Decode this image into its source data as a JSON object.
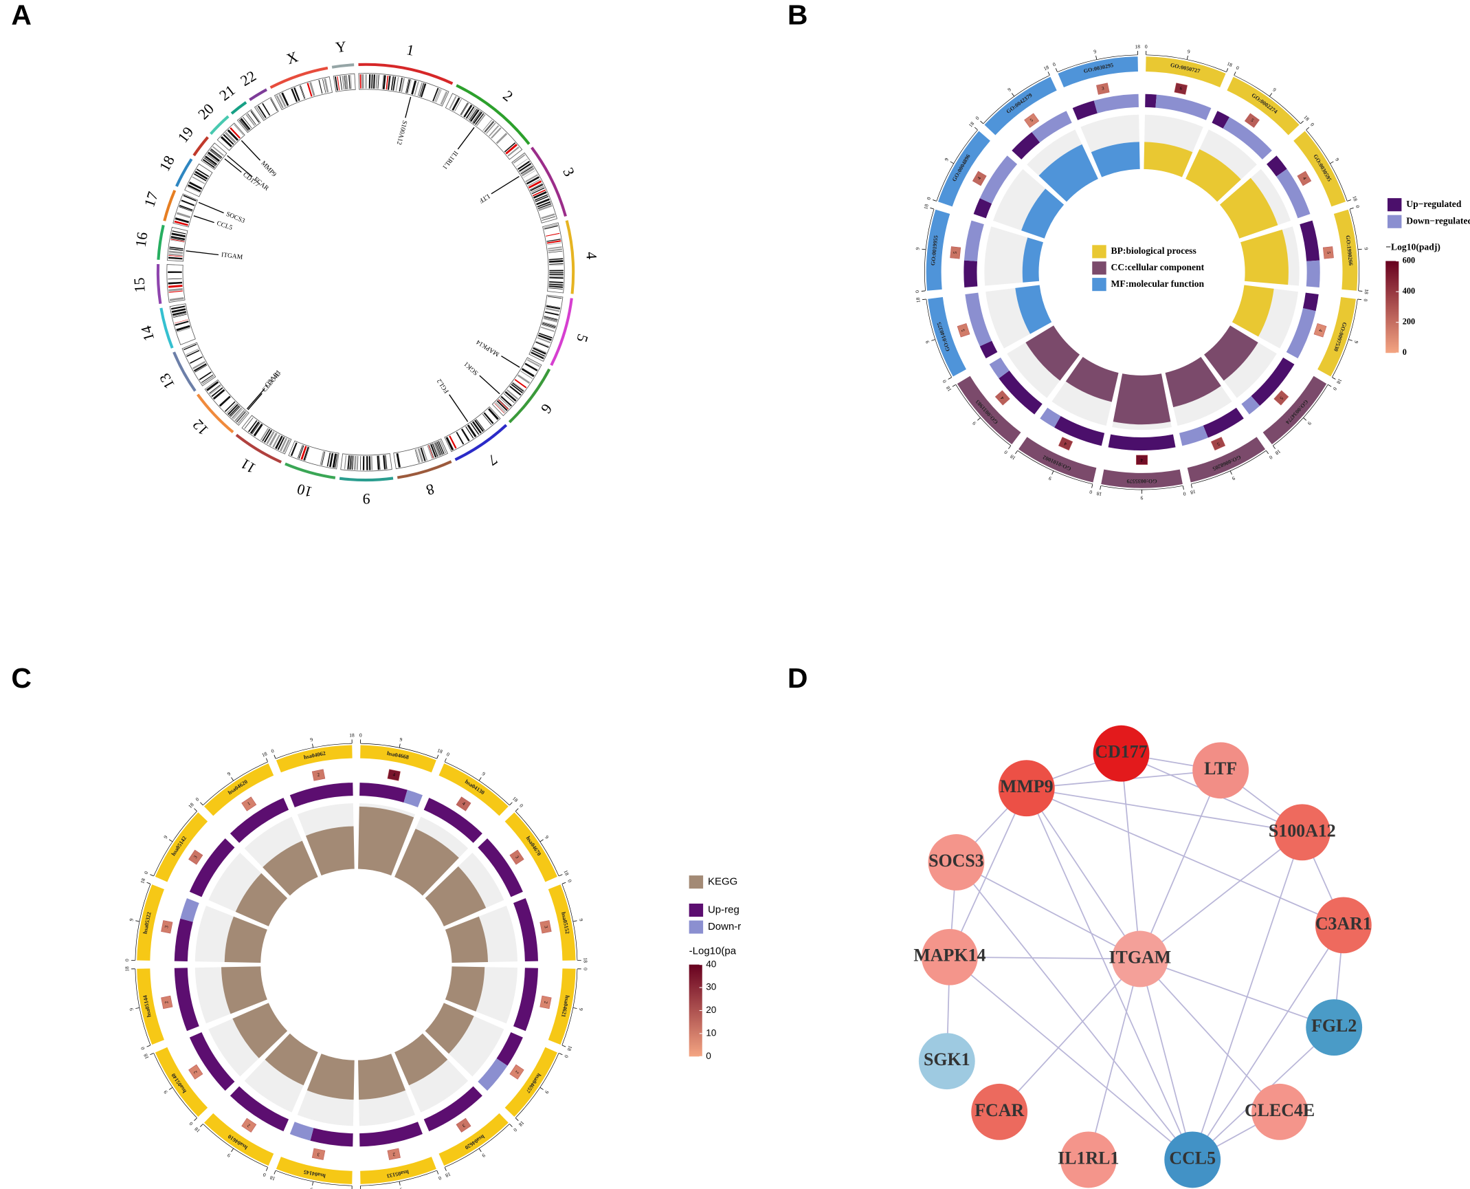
{
  "panel_labels": [
    "A",
    "B",
    "C",
    "D"
  ],
  "chart_data": [
    {
      "type": "ideogram",
      "chromosomes": [
        "1",
        "2",
        "3",
        "4",
        "5",
        "6",
        "7",
        "8",
        "9",
        "10",
        "11",
        "12",
        "13",
        "14",
        "15",
        "16",
        "17",
        "18",
        "19",
        "20",
        "21",
        "22",
        "X",
        "Y"
      ],
      "sizes": [
        249,
        242,
        198,
        190,
        181,
        171,
        159,
        145,
        138,
        134,
        135,
        133,
        114,
        107,
        102,
        90,
        83,
        80,
        59,
        64,
        47,
        51,
        156,
        57
      ],
      "colors": [
        "#d62728",
        "#2ca02c",
        "#9b2d8a",
        "#e6b422",
        "#d63fd0",
        "#3a9a3a",
        "#2b2bc8",
        "#9c5a3c",
        "#2a9d8f",
        "#3aa655",
        "#b0413e",
        "#f08a3c",
        "#6c7fa8",
        "#35c0d0",
        "#8e44ad",
        "#27ae60",
        "#e67e22",
        "#2e86c1",
        "#c0392b",
        "#48c9b0",
        "#16a085",
        "#7d3c98",
        "#e74c3c",
        "#95a5a6"
      ],
      "genes": [
        "S100A12",
        "IL1RL1",
        "LTF",
        "MAPK14",
        "SGK1",
        "FGL2",
        "CLEC4E",
        "C3AR1",
        "ITGAM",
        "CCL5",
        "SOCS3",
        "FCAR",
        "CD177",
        "MMP9"
      ],
      "gene_chromosomes": [
        0,
        1,
        2,
        5,
        5,
        6,
        11,
        11,
        15,
        16,
        16,
        18,
        18,
        19
      ],
      "gene_positions": [
        153,
        102,
        46,
        36,
        134,
        77,
        8,
        12,
        31,
        36,
        78,
        55,
        43,
        46
      ]
    },
    {
      "type": "circos",
      "categories": [
        {
          "name": "BP:biological process",
          "color": "#e9c832"
        },
        {
          "name": "CC:cellular component",
          "color": "#7b4a6b"
        },
        {
          "name": "MF:molecular function",
          "color": "#4f94d9"
        }
      ],
      "terms": [
        "GO:0050727",
        "GO:0002274",
        "GO:0030595",
        "GO:1990266",
        "GO:0097530",
        "GO:0034774",
        "GO:0060205",
        "GO:0035579",
        "GO:0101002",
        "GO:0031983",
        "GO:0140375",
        "GO:0019955",
        "GO:0004896",
        "GO:0042379",
        "GO:0030295"
      ],
      "term_category": [
        0,
        0,
        0,
        0,
        0,
        1,
        1,
        1,
        1,
        1,
        2,
        2,
        2,
        2,
        2
      ],
      "up": [
        1,
        1,
        1,
        3,
        1,
        4,
        3,
        4,
        3,
        3,
        1,
        2,
        1,
        2,
        1
      ],
      "down": [
        5,
        4,
        3,
        2,
        3,
        1,
        2,
        0,
        1,
        1,
        4,
        3,
        3,
        3,
        2
      ],
      "counts": [
        6,
        5,
        4,
        5,
        4,
        5,
        5,
        4,
        4,
        4,
        5,
        5,
        4,
        5,
        3
      ],
      "bar_values": [
        0.5,
        0.6,
        0.75,
        0.8,
        0.55,
        0.6,
        0.65,
        0.9,
        0.55,
        0.6,
        0.45,
        0.3,
        0.45,
        0.7,
        0.5
      ],
      "bar_lim": [
        0,
        1
      ],
      "padj": [
        450,
        250,
        200,
        150,
        100,
        300,
        350,
        550,
        400,
        250,
        150,
        180,
        220,
        130,
        200
      ],
      "scale_lim": [
        0,
        18
      ],
      "scale_ticks": [
        0,
        9,
        18
      ],
      "up_legend": {
        "name": "Up−regulated",
        "color": "#4b0f6b"
      },
      "down_legend": {
        "name": "Down−regulated",
        "color": "#8b8fd0"
      },
      "colorbar": {
        "label": "−Log10(padj)",
        "lim": [
          0,
          600
        ],
        "ticks": [
          0,
          200,
          400,
          600
        ],
        "colors": [
          "#f4a582",
          "#67001f"
        ]
      }
    },
    {
      "type": "circos",
      "categories": [
        {
          "name": "KEGG",
          "color": "#a38a75",
          "band_color": "#f6c816"
        }
      ],
      "terms": [
        "hsa04668",
        "hsa04130",
        "hsa04670",
        "hsa05152",
        "hsa04621",
        "hsa04657",
        "hsa04620",
        "hsa05133",
        "hsa04145",
        "hsa04610",
        "hsa05140",
        "hsa05144",
        "hsa05322",
        "hsa05142",
        "hsa04620",
        "hsa04062"
      ],
      "term_category": [
        0,
        0,
        0,
        0,
        0,
        0,
        0,
        0,
        0,
        0,
        0,
        0,
        0,
        0,
        0,
        0
      ],
      "up": [
        3,
        4,
        3,
        3,
        2,
        1,
        3,
        2,
        2,
        2,
        2,
        2,
        2,
        3,
        1,
        2
      ],
      "down": [
        1,
        0,
        0,
        0,
        0,
        1,
        0,
        0,
        1,
        0,
        0,
        0,
        1,
        0,
        0,
        0
      ],
      "counts": [
        4,
        4,
        3,
        3,
        2,
        2,
        3,
        2,
        3,
        2,
        2,
        2,
        3,
        3,
        1,
        2
      ],
      "bar_values": [
        0.95,
        0.8,
        0.7,
        0.55,
        0.5,
        0.5,
        0.55,
        0.6,
        0.6,
        0.55,
        0.6,
        0.6,
        0.55,
        0.55,
        0.6,
        0.65
      ],
      "bar_lim": [
        0,
        1
      ],
      "padj": [
        35,
        15,
        12,
        10,
        8,
        8,
        12,
        9,
        9,
        8,
        8,
        9,
        10,
        12,
        9,
        11
      ],
      "scale_lim": [
        0,
        18
      ],
      "scale_ticks": [
        0,
        9,
        18
      ],
      "up_legend": {
        "name": "Up-reg",
        "color": "#5c0e70"
      },
      "down_legend": {
        "name": "Down-r",
        "color": "#8b8fd0"
      },
      "colorbar": {
        "label": "-Log10(pa",
        "lim": [
          0,
          40
        ],
        "ticks": [
          0,
          10,
          20,
          30,
          40
        ],
        "colors": [
          "#f4a582",
          "#67001f"
        ]
      }
    }
  ],
  "network": {
    "nodes": [
      {
        "name": "CD177",
        "color": "#e31a1c"
      },
      {
        "name": "LTF",
        "color": "#f28e86"
      },
      {
        "name": "MMP9",
        "color": "#ec5046"
      },
      {
        "name": "S100A12",
        "color": "#ee6a5e"
      },
      {
        "name": "SOCS3",
        "color": "#f4958b"
      },
      {
        "name": "C3AR1",
        "color": "#ee6a5e"
      },
      {
        "name": "MAPK14",
        "color": "#f4958b"
      },
      {
        "name": "ITGAM",
        "color": "#f4a099"
      },
      {
        "name": "FGL2",
        "color": "#4a9bc7"
      },
      {
        "name": "SGK1",
        "color": "#9ecae1"
      },
      {
        "name": "FCAR",
        "color": "#ec6a5e"
      },
      {
        "name": "CLEC4E",
        "color": "#f4958b"
      },
      {
        "name": "IL1RL1",
        "color": "#f4958b"
      },
      {
        "name": "CCL5",
        "color": "#4292c6"
      }
    ],
    "edges": [
      [
        0,
        1
      ],
      [
        0,
        2
      ],
      [
        0,
        3
      ],
      [
        0,
        7
      ],
      [
        2,
        1
      ],
      [
        2,
        3
      ],
      [
        2,
        4
      ],
      [
        2,
        6
      ],
      [
        2,
        7
      ],
      [
        2,
        13
      ],
      [
        2,
        5
      ],
      [
        1,
        3
      ],
      [
        1,
        7
      ],
      [
        3,
        5
      ],
      [
        3,
        7
      ],
      [
        3,
        13
      ],
      [
        4,
        6
      ],
      [
        4,
        7
      ],
      [
        4,
        13
      ],
      [
        6,
        7
      ],
      [
        6,
        9
      ],
      [
        6,
        13
      ],
      [
        7,
        8
      ],
      [
        7,
        10
      ],
      [
        7,
        12
      ],
      [
        7,
        13
      ],
      [
        7,
        11
      ],
      [
        5,
        8
      ],
      [
        5,
        13
      ],
      [
        11,
        13
      ],
      [
        8,
        13
      ]
    ],
    "edge_color": "#b9b6d8"
  }
}
